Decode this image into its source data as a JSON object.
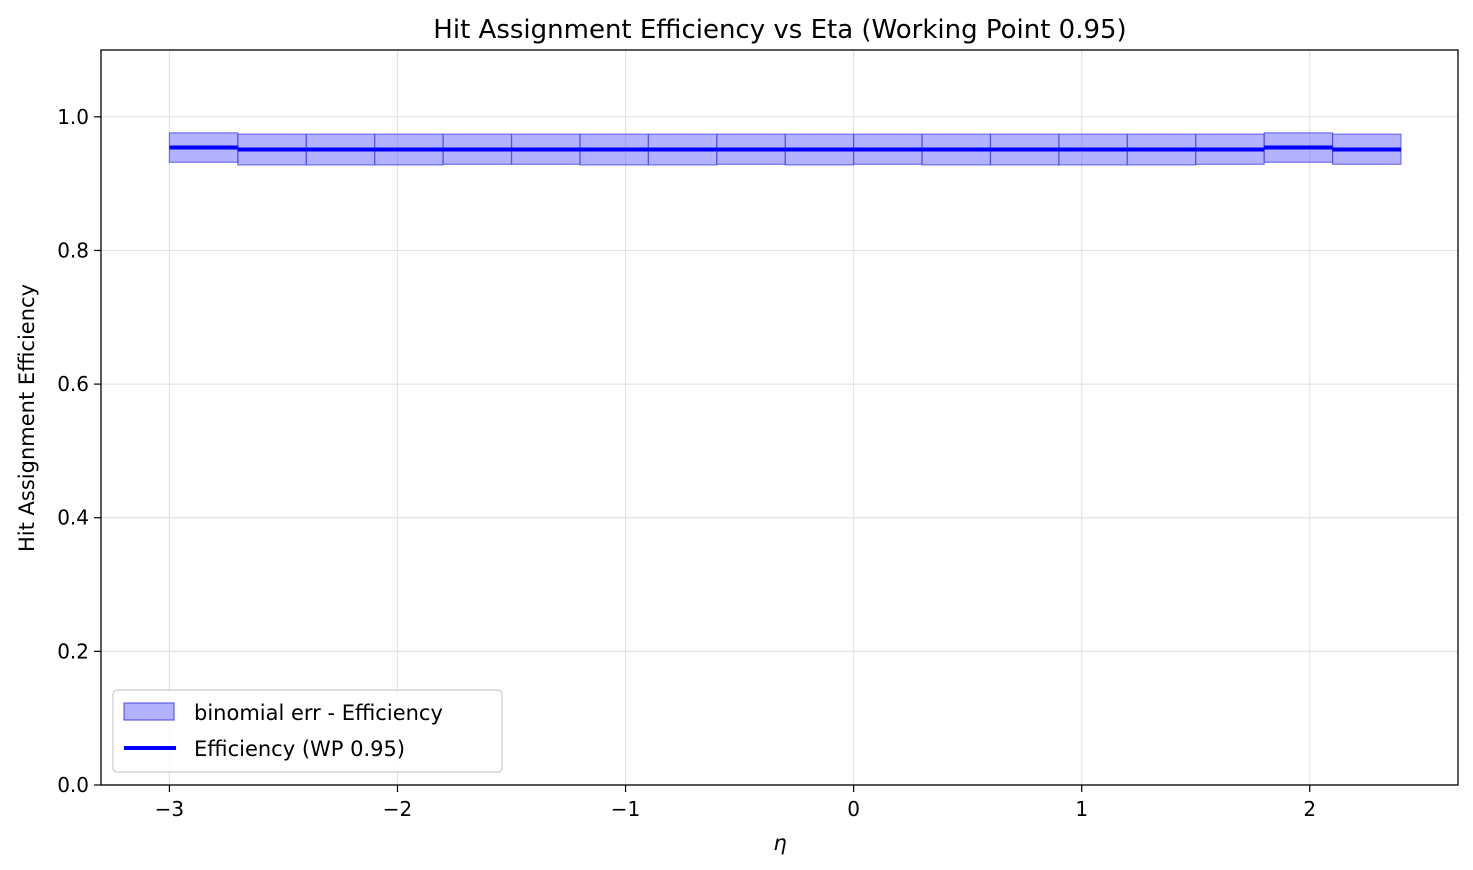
{
  "chart_data": {
    "type": "step-band",
    "title": "Hit Assignment Efficiency vs Eta (Working Point 0.95)",
    "xlabel": "η",
    "ylabel": "Hit Assignment Efficiency",
    "xlim": [
      -3.3,
      2.65
    ],
    "ylim": [
      0.0,
      1.1
    ],
    "xticks": [
      -3,
      -2,
      -1,
      0,
      1,
      2
    ],
    "xtick_labels": [
      "−3",
      "−2",
      "−1",
      "0",
      "1",
      "2"
    ],
    "yticks": [
      0.0,
      0.2,
      0.4,
      0.6,
      0.8,
      1.0
    ],
    "ytick_labels": [
      "0.0",
      "0.2",
      "0.4",
      "0.6",
      "0.8",
      "1.0"
    ],
    "grid": true,
    "bin_edges": [
      -3.0,
      -2.7,
      -2.4,
      -2.1,
      -1.8,
      -1.5,
      -1.2,
      -0.9,
      -0.6,
      -0.3,
      0.0,
      0.3,
      0.6,
      0.9,
      1.2,
      1.5,
      1.8,
      2.1,
      2.4
    ],
    "series": [
      {
        "name": "Efficiency (WP 0.95)",
        "kind": "step",
        "color": "#0000ff",
        "values": [
          0.954,
          0.951,
          0.951,
          0.951,
          0.951,
          0.951,
          0.951,
          0.951,
          0.951,
          0.951,
          0.951,
          0.951,
          0.951,
          0.951,
          0.951,
          0.951,
          0.954,
          0.951
        ]
      },
      {
        "name": "binomial err - Efficiency",
        "kind": "band",
        "color": "#6666ff",
        "lower": [
          0.932,
          0.928,
          0.928,
          0.928,
          0.929,
          0.929,
          0.928,
          0.928,
          0.929,
          0.928,
          0.929,
          0.928,
          0.928,
          0.928,
          0.928,
          0.929,
          0.932,
          0.929
        ],
        "upper": [
          0.976,
          0.974,
          0.974,
          0.974,
          0.974,
          0.974,
          0.974,
          0.974,
          0.974,
          0.974,
          0.974,
          0.974,
          0.974,
          0.974,
          0.974,
          0.974,
          0.976,
          0.974
        ]
      }
    ],
    "legend": {
      "placement": "lower-left",
      "entries": [
        "binomial err - Efficiency",
        "Efficiency (WP 0.95)"
      ]
    }
  }
}
